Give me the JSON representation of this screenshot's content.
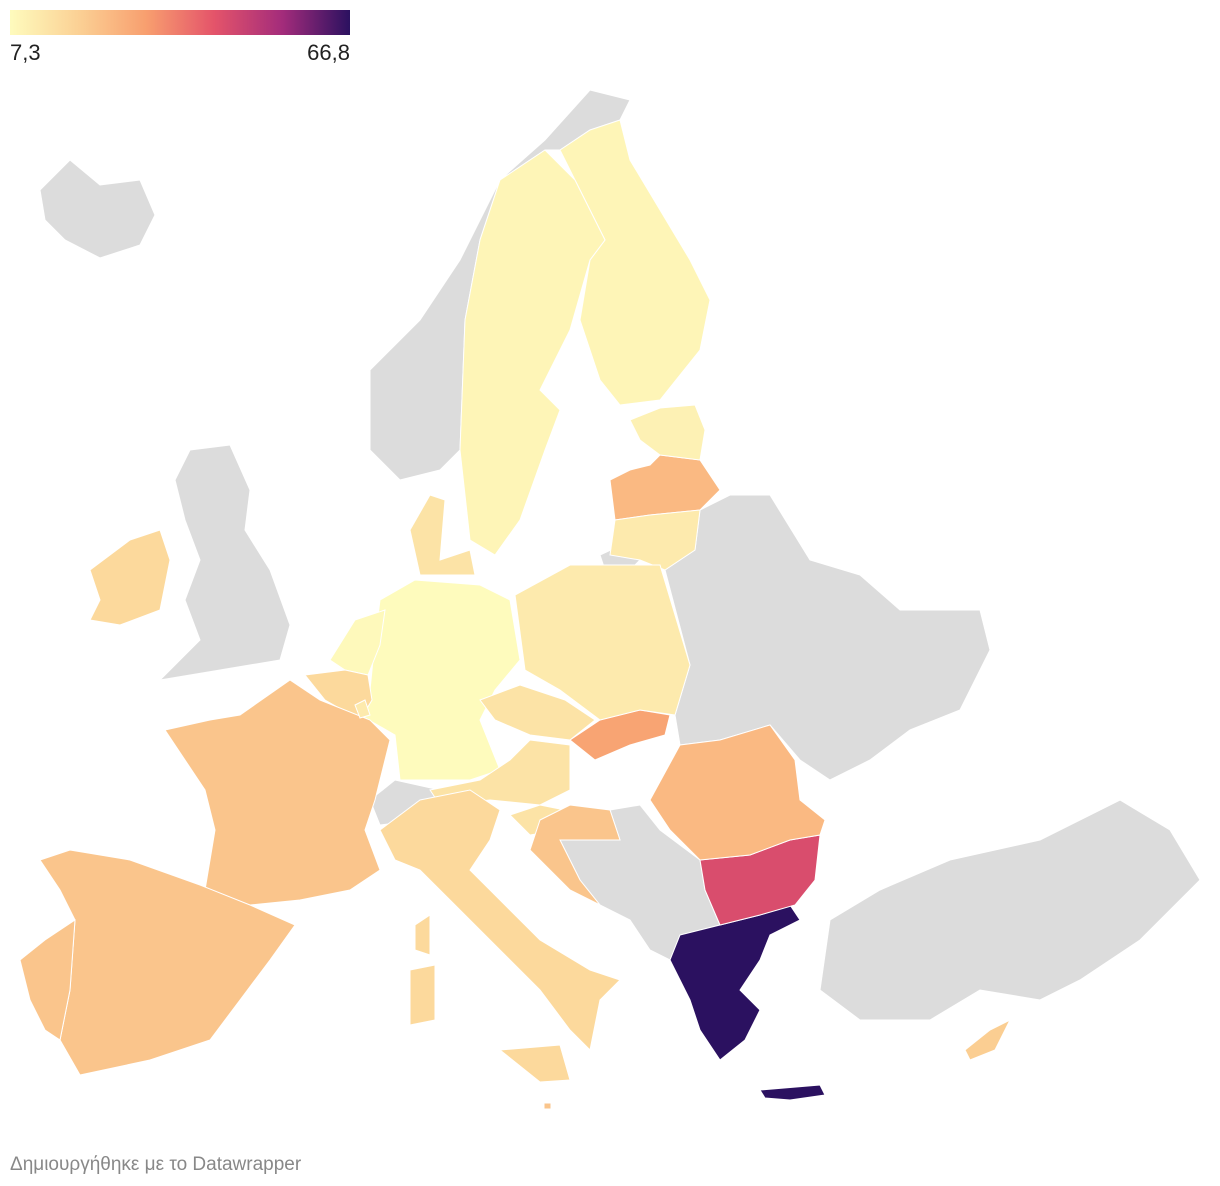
{
  "chart_data": {
    "type": "choropleth",
    "colorscale": [
      "#fefbbd",
      "#fbd195",
      "#f89f6f",
      "#e4546a",
      "#a42c7b",
      "#2b1160"
    ],
    "colorbar": [
      {
        "value": 7.3,
        "label": "7,3"
      },
      {
        "value": 66.8,
        "label": "66,8"
      }
    ],
    "values": [
      66.8,
      45,
      30,
      25,
      25,
      12,
      10,
      9,
      9,
      14,
      7.3,
      8,
      17,
      12,
      14,
      14,
      14,
      22,
      22,
      22,
      22,
      17,
      17,
      20,
      12,
      22
    ],
    "source": "Δημιουργήθηκε με το Datawrapper"
  }
}
